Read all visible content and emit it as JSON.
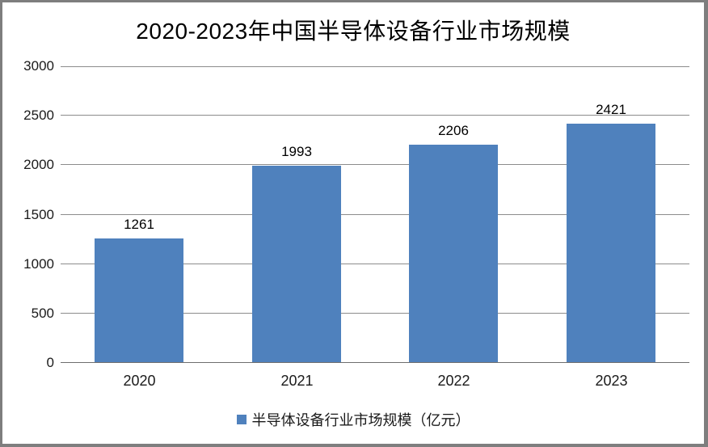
{
  "chart_data": {
    "type": "bar",
    "title": "2020-2023年中国半导体设备行业市场规模",
    "categories": [
      "2020",
      "2021",
      "2022",
      "2023"
    ],
    "values": [
      1261,
      1993,
      2206,
      2421
    ],
    "series": [
      {
        "name": "半导体设备行业市场规模（亿元）",
        "values": [
          1261,
          1993,
          2206,
          2421
        ]
      }
    ],
    "xlabel": "",
    "ylabel": "",
    "ylim": [
      0,
      3000
    ],
    "yticks": [
      0,
      500,
      1000,
      1500,
      2000,
      2500,
      3000
    ],
    "grid": true,
    "data_labels": true,
    "legend_position": "bottom",
    "colors": {
      "bar": "#4F81BD",
      "gridline": "#8C8C8C",
      "axis": "#6E6E6E",
      "frame": "#7E7E7E",
      "background": "#FFFFFF",
      "text": "#1A1A1A"
    }
  }
}
